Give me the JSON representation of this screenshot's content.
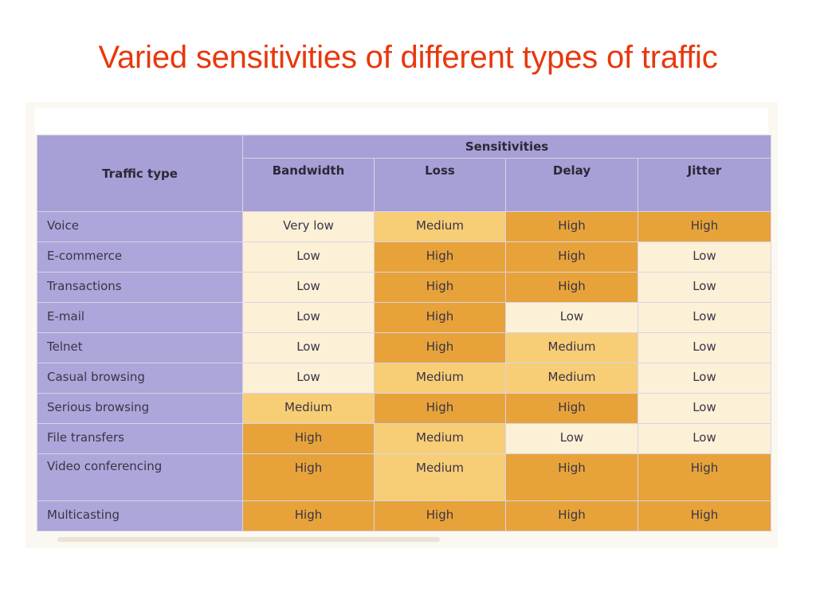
{
  "title": "Varied sensitivities of different types of traffic",
  "table": {
    "group_header": "Sensitivities",
    "traffic_type_header": "Traffic type",
    "columns": [
      "Bandwidth",
      "Loss",
      "Delay",
      "Jitter"
    ],
    "rows": [
      {
        "type": "Voice",
        "values": [
          "Very low",
          "Medium",
          "High",
          "High"
        ]
      },
      {
        "type": "E-commerce",
        "values": [
          "Low",
          "High",
          "High",
          "Low"
        ]
      },
      {
        "type": "Transactions",
        "values": [
          "Low",
          "High",
          "High",
          "Low"
        ]
      },
      {
        "type": "E-mail",
        "values": [
          "Low",
          "High",
          "Low",
          "Low"
        ]
      },
      {
        "type": "Telnet",
        "values": [
          "Low",
          "High",
          "Medium",
          "Low"
        ]
      },
      {
        "type": "Casual browsing",
        "values": [
          "Low",
          "Medium",
          "Medium",
          "Low"
        ]
      },
      {
        "type": "Serious browsing",
        "values": [
          "Medium",
          "High",
          "High",
          "Low"
        ]
      },
      {
        "type": "File transfers",
        "values": [
          "High",
          "Medium",
          "Low",
          "Low"
        ]
      },
      {
        "type": "Video conferencing",
        "values": [
          "High",
          "Medium",
          "High",
          "High"
        ]
      },
      {
        "type": "Multicasting",
        "values": [
          "High",
          "High",
          "High",
          "High"
        ]
      }
    ],
    "level_colors": {
      "High": "#e7a33a",
      "Medium": "#f7cd76",
      "Low": "#fcf0d6",
      "Very low": "#fcf0d6"
    },
    "header_color": "#a7a0d6"
  }
}
